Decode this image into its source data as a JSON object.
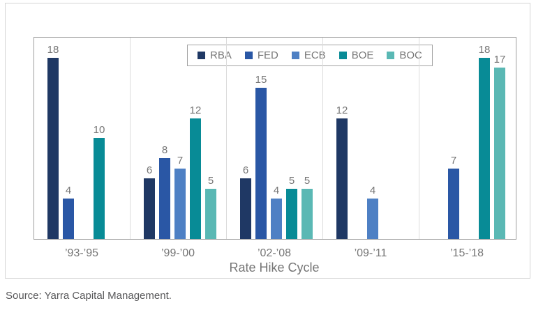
{
  "chart_data": {
    "type": "bar",
    "title": "",
    "xlabel": "Rate Hike Cycle",
    "ylabel": "",
    "categories": [
      "’93-’95",
      "’99-’00",
      "’02-’08",
      "’09-’11",
      "’15-’18"
    ],
    "series": [
      {
        "name": "RBA",
        "color": "#1f3864",
        "values": [
          18,
          6,
          6,
          12,
          null
        ]
      },
      {
        "name": "FED",
        "color": "#2a57a5",
        "values": [
          4,
          8,
          15,
          null,
          7
        ]
      },
      {
        "name": "ECB",
        "color": "#4e80c4",
        "values": [
          null,
          7,
          4,
          4,
          null
        ]
      },
      {
        "name": "BOE",
        "color": "#088b96",
        "values": [
          10,
          12,
          5,
          null,
          18
        ]
      },
      {
        "name": "BOC",
        "color": "#5ab8b4",
        "values": [
          null,
          5,
          5,
          null,
          17
        ]
      }
    ],
    "ylim": [
      0,
      20
    ],
    "grid": "vertical-group-separators",
    "legend_position": "top-center",
    "value_labels": true
  },
  "source": "Source: Yarra Capital Management.",
  "colors": {
    "label_grey": "#757575",
    "source_grey": "#58585a",
    "plot_border": "#9e9e9e",
    "card_border": "#d6d6d6",
    "gridline": "#dcdcdc"
  }
}
